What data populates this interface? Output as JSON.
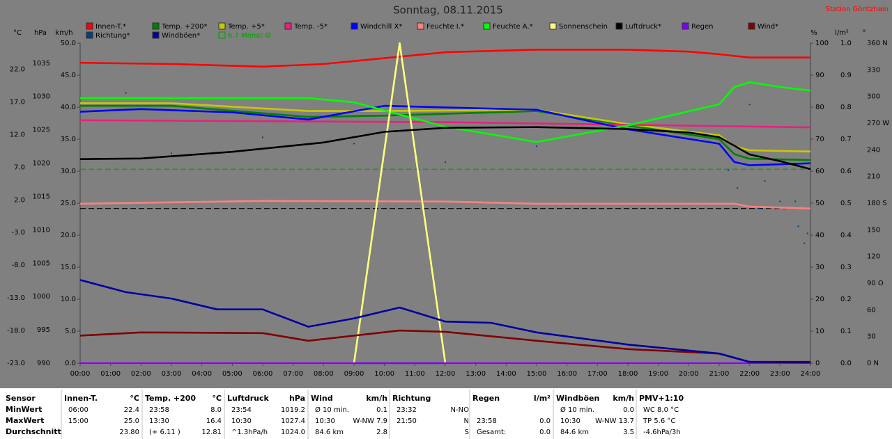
{
  "chart_data": {
    "type": "line",
    "title": "Sonntag, 08.11.2015",
    "subtitle": "Station Göritzhain",
    "xlim": [
      0,
      24
    ],
    "xticks": [
      {
        "value": 0,
        "label": "00:00"
      },
      {
        "value": 1,
        "label": "01:00"
      },
      {
        "value": 2,
        "label": "02:00"
      },
      {
        "value": 3,
        "label": "03:00"
      },
      {
        "value": 4,
        "label": "04:00"
      },
      {
        "value": 5,
        "label": "05:00"
      },
      {
        "value": 6,
        "label": "06:00"
      },
      {
        "value": 7,
        "label": "07:00"
      },
      {
        "value": 8,
        "label": "08:00"
      },
      {
        "value": 9,
        "label": "09:00"
      },
      {
        "value": 10,
        "label": "10:00"
      },
      {
        "value": 11,
        "label": "11:00"
      },
      {
        "value": 12,
        "label": "12:00"
      },
      {
        "value": 13,
        "label": "13:00"
      },
      {
        "value": 14,
        "label": "14:00"
      },
      {
        "value": 15,
        "label": "15:00"
      },
      {
        "value": 16,
        "label": "16:00"
      },
      {
        "value": 17,
        "label": "17:00"
      },
      {
        "value": 18,
        "label": "18:00"
      },
      {
        "value": 19,
        "label": "19:00"
      },
      {
        "value": 20,
        "label": "20:00"
      },
      {
        "value": 21,
        "label": "21:00"
      },
      {
        "value": 22,
        "label": "22:00"
      },
      {
        "value": 23,
        "label": "23:00"
      },
      {
        "value": 24,
        "label": "24:00"
      }
    ],
    "axes": [
      {
        "unit": "°C",
        "lim": [
          -23,
          26
        ],
        "ticks": [
          {
            "value": -23,
            "label": "-23.0"
          },
          {
            "value": -18,
            "label": "-18.0"
          },
          {
            "value": -13,
            "label": "-13.0"
          },
          {
            "value": -8,
            "label": "-8.0"
          },
          {
            "value": -3,
            "label": "-3.0"
          },
          {
            "value": 2,
            "label": "2.0"
          },
          {
            "value": 7,
            "label": "7.0"
          },
          {
            "value": 12,
            "label": "12.0"
          },
          {
            "value": 17,
            "label": "17.0"
          },
          {
            "value": 22,
            "label": "22.0"
          }
        ]
      },
      {
        "unit": "hPa",
        "lim": [
          990,
          1038
        ],
        "ticks": [
          990,
          995,
          1000,
          1005,
          1010,
          1015,
          1020,
          1025,
          1030,
          1035
        ]
      },
      {
        "unit": "km/h",
        "lim": [
          0,
          50
        ],
        "ticks": [
          {
            "value": 0,
            "label": "0.0"
          },
          {
            "value": 5,
            "label": "5.0"
          },
          {
            "value": 10,
            "label": "10.0"
          },
          {
            "value": 15,
            "label": "15.0"
          },
          {
            "value": 20,
            "label": "20.0"
          },
          {
            "value": 25,
            "label": "25.0"
          },
          {
            "value": 30,
            "label": "30.0"
          },
          {
            "value": 35,
            "label": "35.0"
          },
          {
            "value": 40,
            "label": "40.0"
          },
          {
            "value": 45,
            "label": "45.0"
          },
          {
            "value": 50,
            "label": "50.0"
          }
        ]
      },
      {
        "unit": "%",
        "lim": [
          0,
          100
        ],
        "ticks": [
          0,
          10,
          20,
          30,
          40,
          50,
          60,
          70,
          80,
          90,
          100
        ]
      },
      {
        "unit": "l/m²",
        "lim": [
          0,
          1
        ],
        "ticks": [
          {
            "value": 0,
            "label": "0.0"
          },
          0.1,
          0.2,
          0.3,
          0.4,
          0.5,
          0.6,
          0.7,
          0.8,
          0.9,
          {
            "value": 1,
            "label": "1.0"
          }
        ]
      },
      {
        "unit": "°",
        "lim": [
          0,
          360
        ],
        "ticks": [
          {
            "value": 0,
            "label": "0 N"
          },
          30,
          60,
          {
            "value": 90,
            "label": "90 O"
          },
          120,
          150,
          {
            "value": 180,
            "label": "180 S"
          },
          210,
          240,
          {
            "value": 270,
            "label": "270 W"
          },
          300,
          330,
          {
            "value": 360,
            "label": "360 N"
          }
        ]
      }
    ],
    "series": [
      {
        "name": "Innen-T.*",
        "color": "#ff0000",
        "axis": 0,
        "x": [
          0,
          3,
          6,
          8,
          10,
          12,
          15,
          18,
          20,
          21,
          22,
          24
        ],
        "values": [
          23.0,
          22.8,
          22.4,
          22.8,
          23.7,
          24.6,
          25.0,
          25.0,
          24.7,
          24.3,
          23.8,
          23.8
        ]
      },
      {
        "name": "Temp. +200*",
        "color": "#008000",
        "axis": 0,
        "x": [
          0,
          3,
          7.5,
          10,
          15,
          18,
          21,
          21.5,
          22,
          24
        ],
        "values": [
          16.4,
          16.4,
          14.7,
          14.9,
          15.6,
          13.4,
          11.3,
          9.0,
          8.3,
          8.1
        ]
      },
      {
        "name": "Temp. +5*",
        "color": "#c8c800",
        "axis": 0,
        "x": [
          0,
          3,
          7.5,
          10,
          15,
          18,
          21,
          21.5,
          22,
          24
        ],
        "values": [
          16.8,
          16.8,
          15.6,
          15.6,
          15.8,
          13.6,
          11.9,
          10.2,
          9.6,
          9.4
        ]
      },
      {
        "name": "Temp. -5*",
        "color": "#e8207f",
        "axis": 0,
        "x": [
          0,
          12,
          24
        ],
        "values": [
          14.2,
          13.9,
          13.1
        ]
      },
      {
        "name": "Windchill X*",
        "color": "#0000ff",
        "axis": 0,
        "x": [
          0,
          2,
          5,
          7.5,
          10,
          15,
          18,
          21,
          21.5,
          22,
          24
        ],
        "values": [
          15.5,
          15.9,
          15.4,
          14.3,
          16.4,
          15.8,
          12.8,
          10.6,
          7.8,
          7.3,
          7.6
        ]
      },
      {
        "name": "Feuchte I.*",
        "color": "#ff8080",
        "axis": 3,
        "x": [
          0,
          6,
          12,
          15,
          21.5,
          22,
          24
        ],
        "values": [
          49.8,
          50.7,
          50.5,
          49.8,
          49.8,
          48.9,
          48.3
        ]
      },
      {
        "name": "Feuchte A.*",
        "color": "#00ff00",
        "axis": 3,
        "x": [
          0,
          7.5,
          9,
          12,
          15,
          18,
          21,
          21.5,
          22,
          23,
          24
        ],
        "values": [
          82.8,
          82.8,
          81.5,
          73.9,
          69.1,
          74.3,
          80.9,
          86.3,
          87.8,
          86.3,
          85.2
        ]
      },
      {
        "name": "Sonnenschein",
        "color": "#ffff80",
        "axis": 3,
        "x": [
          0,
          9,
          10.5,
          12,
          24
        ],
        "values": [
          0,
          0,
          100,
          0,
          0
        ]
      },
      {
        "name": "Luftdruck*",
        "color": "#000000",
        "axis": 1,
        "x": [
          0,
          2,
          5,
          8,
          10,
          12,
          15,
          18,
          20,
          21,
          22,
          23,
          24
        ],
        "values": [
          1020.6,
          1020.7,
          1021.7,
          1023.1,
          1024.7,
          1025.3,
          1025.4,
          1025.1,
          1024.6,
          1023.9,
          1021.3,
          1020.3,
          1019.1
        ]
      },
      {
        "name": "Regen",
        "color": "#8000ff",
        "axis": 4,
        "x": [
          0,
          24
        ],
        "values": [
          0,
          0
        ]
      },
      {
        "name": "Wind*",
        "color": "#800000",
        "axis": 2,
        "x": [
          0,
          2,
          6,
          7.5,
          10.5,
          12,
          15,
          18,
          21,
          22,
          24
        ],
        "values": [
          4.3,
          4.8,
          4.7,
          3.5,
          5.1,
          4.9,
          3.5,
          2.2,
          1.5,
          0.2,
          0.1
        ]
      },
      {
        "name": "Richtung*",
        "color": "#004080",
        "axis": 5,
        "type": "scatter",
        "x": [
          1.5,
          3,
          6,
          9,
          12,
          15,
          21.3,
          21.6,
          22,
          22.3,
          22.5,
          23,
          23.5,
          23.6,
          23.8,
          23.9
        ],
        "values": [
          304,
          236,
          254,
          247,
          226,
          244,
          217,
          197,
          291,
          174,
          205,
          182,
          182,
          154,
          135,
          146
        ]
      },
      {
        "name": "Windböen*",
        "color": "#0000a0",
        "axis": 2,
        "x": [
          0,
          1.5,
          3,
          4.5,
          6,
          7.5,
          9,
          10.5,
          12,
          13.5,
          15,
          18,
          21,
          22,
          24
        ],
        "values": [
          13.0,
          11.1,
          10.1,
          8.4,
          8.4,
          5.7,
          7.0,
          8.7,
          6.5,
          6.3,
          4.8,
          2.9,
          1.5,
          0.2,
          0.2
        ]
      }
    ],
    "reference_lines": [
      {
        "name": "6.7 Monat-Ø",
        "color": "#00a000",
        "axis": 0,
        "value": 6.7
      },
      {
        "color": "#000000",
        "axis": 1,
        "value": 1013.2
      }
    ]
  },
  "table": {
    "labels": [
      "Sensor",
      "MinWert",
      "MaxWert",
      "Durchschnitt"
    ],
    "columns": [
      {
        "header": "Innen-T.",
        "unit": "°C",
        "rows": [
          [
            "06:00",
            "22.4"
          ],
          [
            "15:00",
            "25.0"
          ],
          [
            null,
            "23.80"
          ]
        ]
      },
      {
        "header": "Temp. +200",
        "unit": "°C",
        "rows": [
          [
            "23:58",
            "8.0"
          ],
          [
            "13:30",
            "16.4"
          ],
          [
            "(+ 6.11 )",
            "12.81"
          ]
        ]
      },
      {
        "header": "Luftdruck",
        "unit": "hPa",
        "rows": [
          [
            "23:54",
            "1019.2"
          ],
          [
            "10:30",
            "1027.4"
          ],
          [
            "^1.3hPa/h",
            "1024.0"
          ]
        ]
      },
      {
        "header": "Wind",
        "unit": "km/h",
        "rows": [
          [
            "Ø 10 min.",
            "0.1"
          ],
          [
            "10:30",
            "W-NW 7.9"
          ],
          [
            "84.6 km",
            "2.8"
          ]
        ]
      },
      {
        "header": "Richtung",
        "unit": null,
        "rows": [
          [
            "23:32",
            "N-NO"
          ],
          [
            "21:50",
            "N"
          ],
          [
            null,
            "S"
          ]
        ]
      },
      {
        "header": "Regen",
        "unit": "l/m²",
        "rows": [
          [
            null,
            null
          ],
          [
            "23:58",
            "0.0"
          ],
          [
            "Gesamt:",
            "0.0"
          ]
        ]
      },
      {
        "header": "Windböen",
        "unit": "km/h",
        "rows": [
          [
            "Ø 10 min.",
            "0.0"
          ],
          [
            "10:30",
            "W-NW 13.7"
          ],
          [
            "84.6 km",
            "3.5"
          ]
        ]
      },
      {
        "header": "PMV+1:10",
        "unit": null,
        "rows": [
          [
            "WC 8.0 °C",
            null
          ],
          [
            "TP 5.6 °C",
            null
          ],
          [
            "-4.6hPa/3h",
            null
          ]
        ]
      }
    ]
  }
}
